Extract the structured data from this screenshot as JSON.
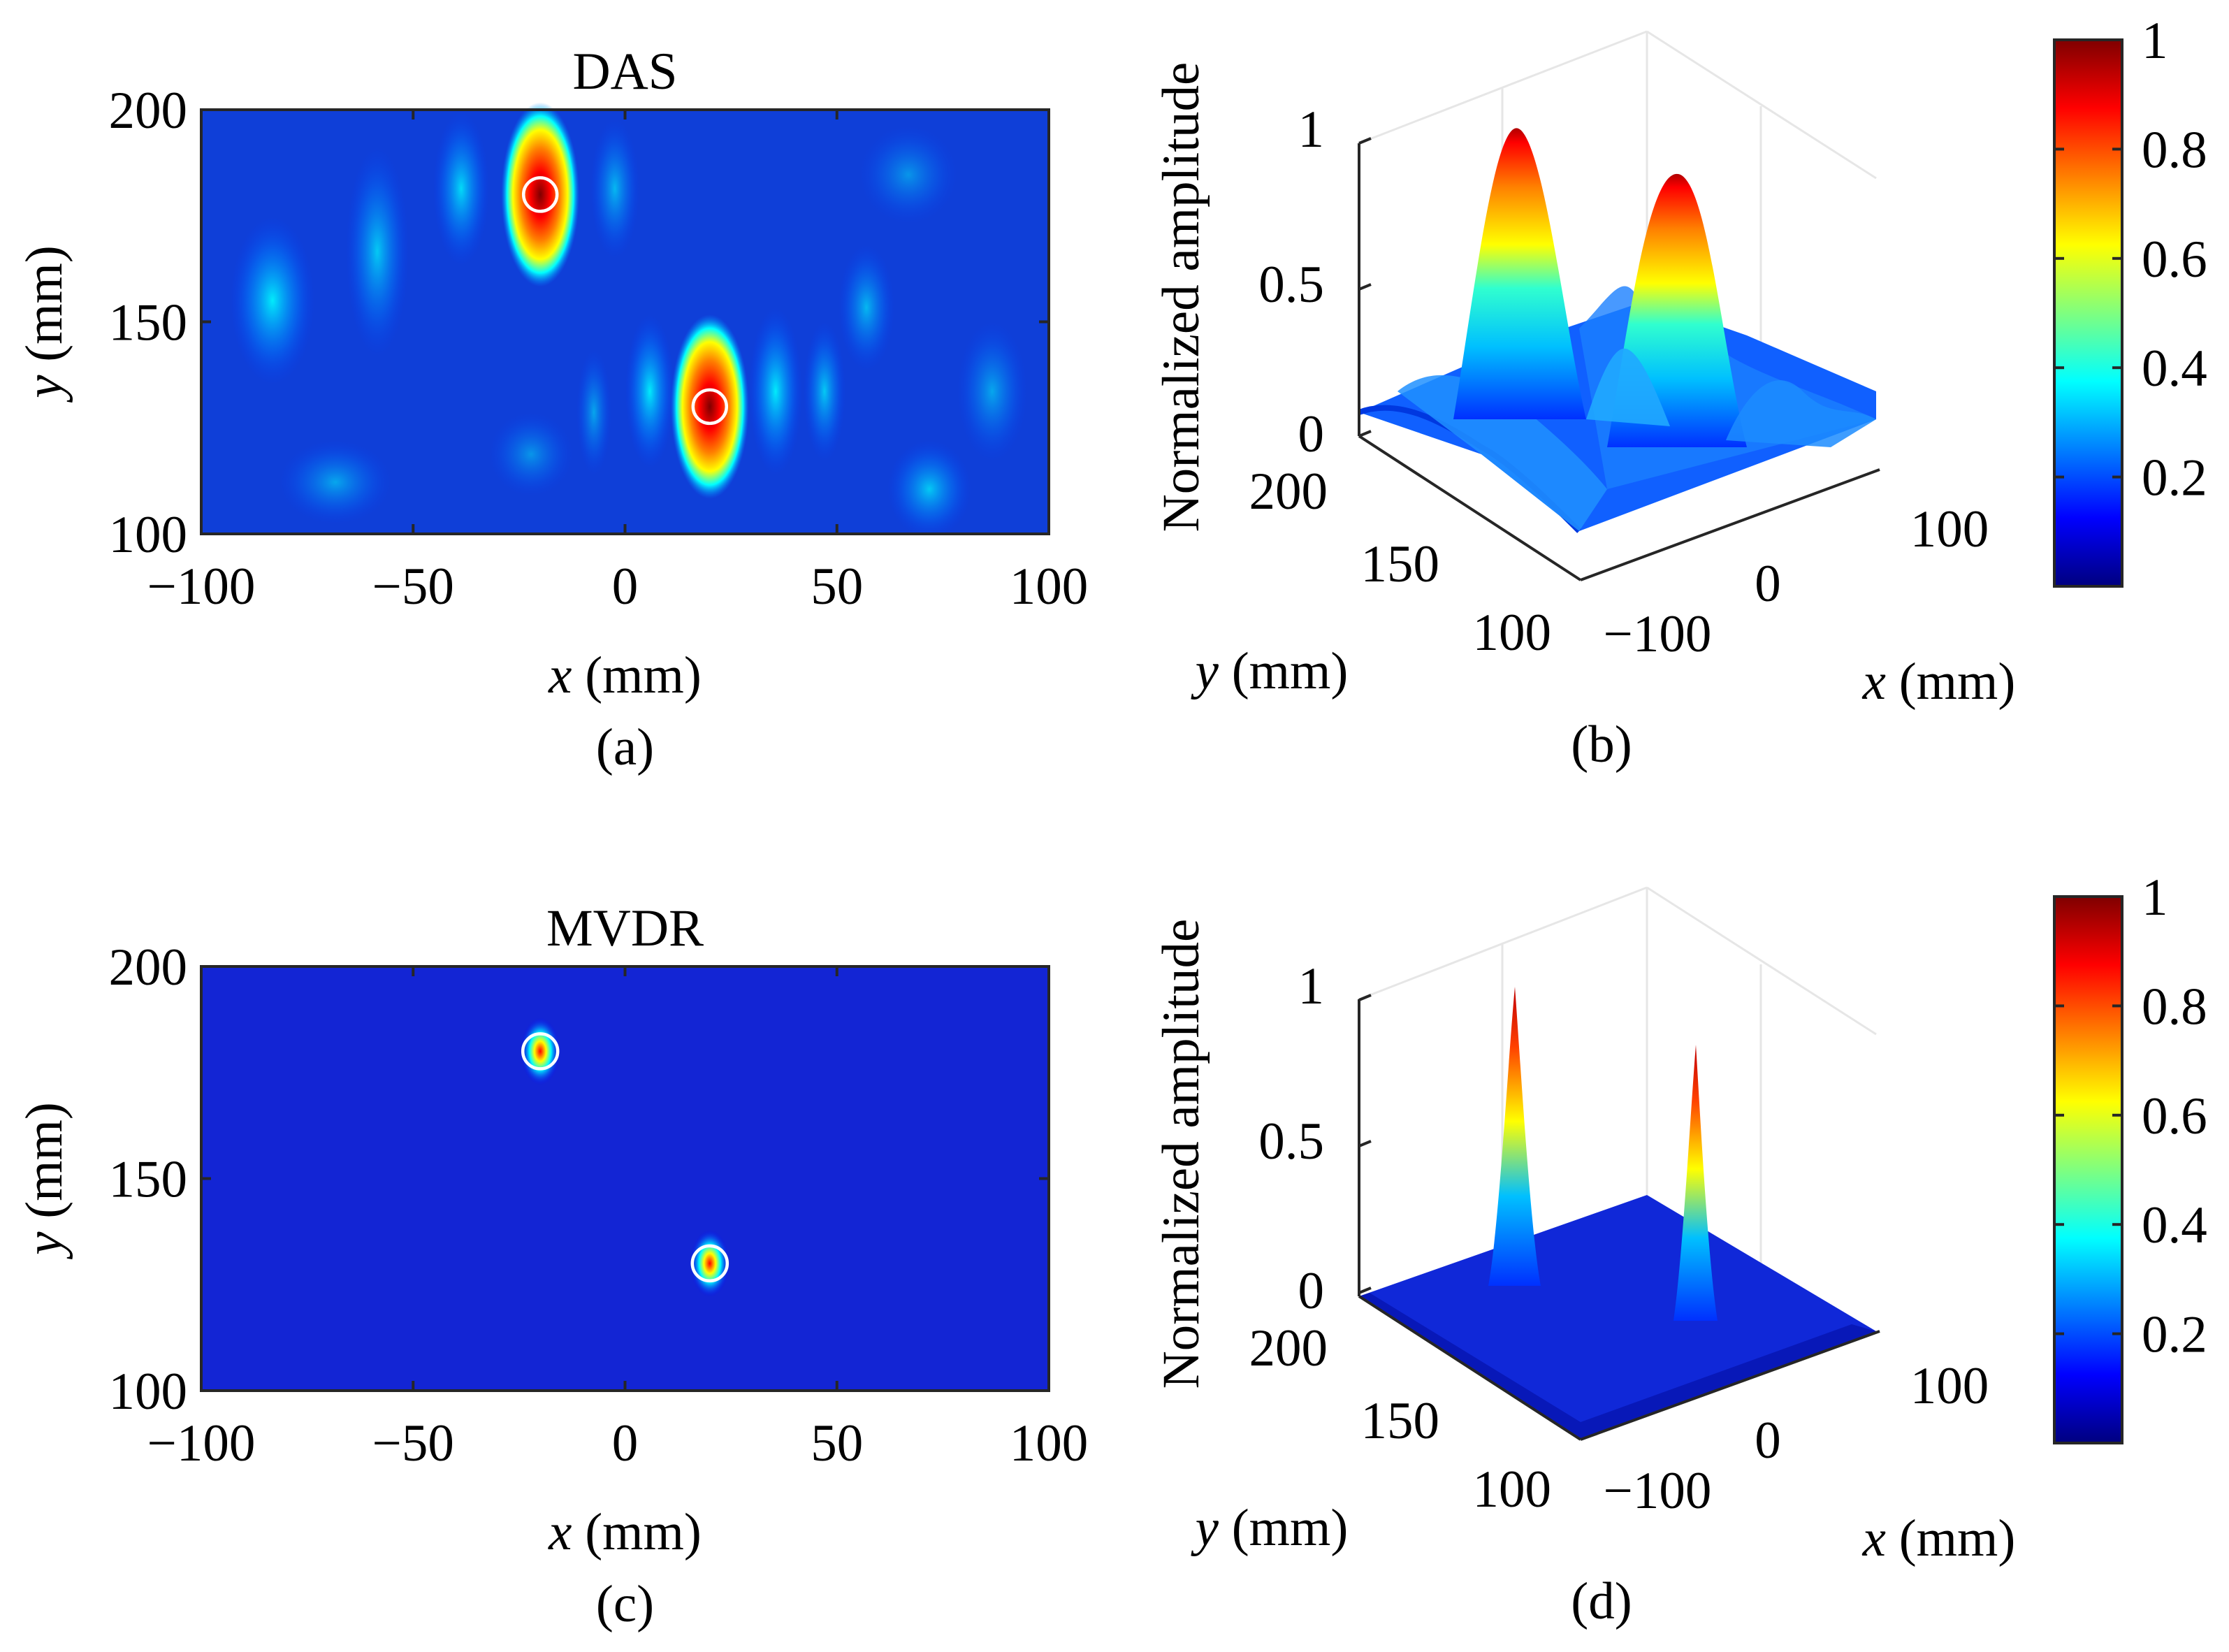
{
  "colors": {
    "accent": "#00007f",
    "marker": "#ffffff",
    "axis": "#262626",
    "grid": "#e6e6e6"
  },
  "colormap": [
    "#00007f",
    "#0000ff",
    "#007fff",
    "#00ffff",
    "#7fff7f",
    "#ffff00",
    "#ff7f00",
    "#ff0000",
    "#7f0000"
  ],
  "chart_data": [
    {
      "id": "a",
      "type": "heatmap",
      "title": "DAS",
      "caption": "(a)",
      "xlabel_var": "x",
      "xlabel_unit": " (mm)",
      "ylabel_var": "y",
      "ylabel_unit": " (mm)",
      "xlim": [
        -100,
        100
      ],
      "ylim": [
        100,
        200
      ],
      "xticks": [
        -100,
        -50,
        0,
        50,
        100
      ],
      "xtick_labels": [
        "−100",
        "−50",
        "0",
        "50",
        "100"
      ],
      "yticks": [
        100,
        150,
        200
      ],
      "ytick_labels": [
        "100",
        "150",
        "200"
      ],
      "sources": [
        {
          "x": -20,
          "y": 180,
          "peak": 1.0
        },
        {
          "x": 20,
          "y": 130,
          "peak": 1.0
        }
      ],
      "background_level": 0.3
    },
    {
      "id": "b",
      "type": "surface",
      "caption": "(b)",
      "zlabel": "Normalized amplitude",
      "xlabel_var": "x",
      "xlabel_unit": " (mm)",
      "ylabel_var": "y",
      "ylabel_unit": " (mm)",
      "zticks": [
        0,
        0.5,
        1
      ],
      "ztick_labels": [
        "0",
        "0.5",
        "1"
      ],
      "yticks": [
        200,
        150,
        100
      ],
      "ytick_labels": [
        "200",
        "150",
        "100"
      ],
      "xticks": [
        -100,
        0,
        100
      ],
      "xtick_labels": [
        "−100",
        "0",
        "100"
      ],
      "peaks": [
        {
          "x": -20,
          "y": 180,
          "z": 1.0
        },
        {
          "x": 20,
          "y": 130,
          "z": 0.9
        }
      ],
      "colorbar": {
        "ticks": [
          0.2,
          0.4,
          0.6,
          0.8,
          1
        ],
        "tick_labels": [
          "0.2",
          "0.4",
          "0.6",
          "0.8",
          "1"
        ]
      }
    },
    {
      "id": "c",
      "type": "heatmap",
      "title": "MVDR",
      "caption": "(c)",
      "xlabel_var": "x",
      "xlabel_unit": " (mm)",
      "ylabel_var": "y",
      "ylabel_unit": " (mm)",
      "xlim": [
        -100,
        100
      ],
      "ylim": [
        100,
        200
      ],
      "xticks": [
        -100,
        -50,
        0,
        50,
        100
      ],
      "xtick_labels": [
        "−100",
        "−50",
        "0",
        "50",
        "100"
      ],
      "yticks": [
        100,
        150,
        200
      ],
      "ytick_labels": [
        "100",
        "150",
        "200"
      ],
      "sources": [
        {
          "x": -20,
          "y": 180,
          "peak": 1.0
        },
        {
          "x": 20,
          "y": 130,
          "peak": 1.0
        }
      ],
      "background_level": 0.05
    },
    {
      "id": "d",
      "type": "surface",
      "caption": "(d)",
      "zlabel": "Normalized amplitude",
      "xlabel_var": "x",
      "xlabel_unit": " (mm)",
      "ylabel_var": "y",
      "ylabel_unit": " (mm)",
      "zticks": [
        0,
        0.5,
        1
      ],
      "ztick_labels": [
        "0",
        "0.5",
        "1"
      ],
      "yticks": [
        200,
        150,
        100
      ],
      "ytick_labels": [
        "200",
        "150",
        "100"
      ],
      "xticks": [
        -100,
        0,
        100
      ],
      "xtick_labels": [
        "−100",
        "0",
        "100"
      ],
      "peaks": [
        {
          "x": -20,
          "y": 180,
          "z": 1.0
        },
        {
          "x": 20,
          "y": 130,
          "z": 0.88
        }
      ],
      "colorbar": {
        "ticks": [
          0.2,
          0.4,
          0.6,
          0.8,
          1
        ],
        "tick_labels": [
          "0.2",
          "0.4",
          "0.6",
          "0.8",
          "1"
        ]
      }
    }
  ]
}
